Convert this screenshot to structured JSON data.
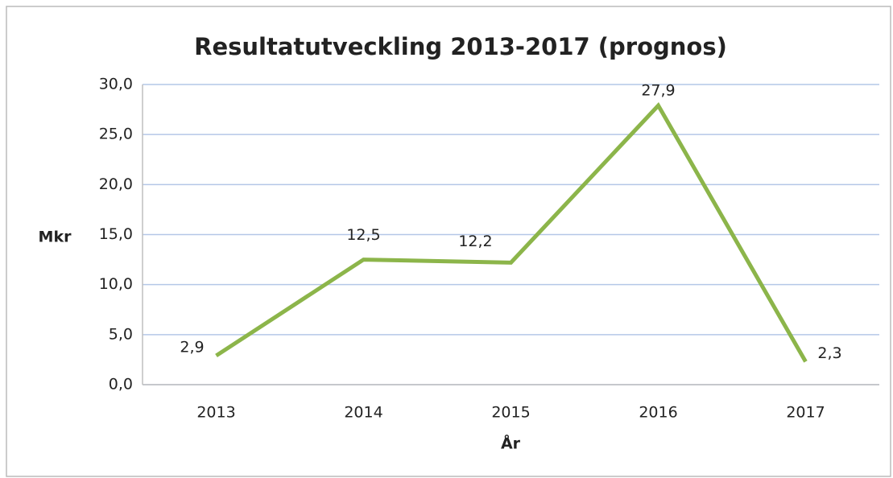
{
  "chart_data": {
    "type": "line",
    "title": "Resultatutveckling 2013-2017 (prognos)",
    "x_label": "År",
    "y_label": "Mkr",
    "categories": [
      "2013",
      "2014",
      "2015",
      "2016",
      "2017"
    ],
    "values": [
      2.9,
      12.5,
      12.2,
      27.9,
      2.3
    ],
    "value_labels": [
      "2,9",
      "12,5",
      "12,2",
      "27,9",
      "2,3"
    ],
    "color": "#8cb54a",
    "ylim": [
      0,
      30
    ],
    "yticks": [
      {
        "value": 0,
        "label": "0,0"
      },
      {
        "value": 5,
        "label": "5,0"
      },
      {
        "value": 10,
        "label": "10,0"
      },
      {
        "value": 15,
        "label": "15,0"
      },
      {
        "value": 20,
        "label": "20,0"
      },
      {
        "value": 25,
        "label": "25,0"
      },
      {
        "value": 30,
        "label": "30,0"
      }
    ],
    "grid": true
  }
}
